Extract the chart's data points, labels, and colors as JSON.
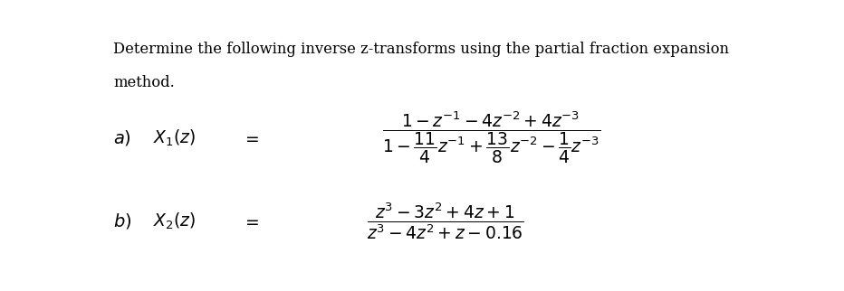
{
  "background_color": "#ffffff",
  "text_color": "#000000",
  "title_line1": "Determine the following inverse z-transforms using the partial fraction expansion",
  "title_line2": "method.",
  "title_fontsize": 11.8,
  "math_fontsize": 13.5,
  "label_fontsize": 13.5,
  "part_a_label": "a)",
  "part_a_x1_label": "$X_1(z)$",
  "part_a_eq": "$=$",
  "part_a_frac": "$\\dfrac{1 - z^{-1} - 4z^{-2} + 4z^{-3}}{1 - \\dfrac{11}{4}z^{-1} + \\dfrac{13}{8}z^{-2} - \\dfrac{1}{4}z^{-3}}$",
  "part_b_label": "b)",
  "part_b_x2_label": "$X_2(z)$",
  "part_b_eq": "$=$",
  "part_b_frac": "$\\dfrac{z^3 - 3z^2 + 4z + 1}{z^3 - 4z^2 + z - 0.16}$"
}
